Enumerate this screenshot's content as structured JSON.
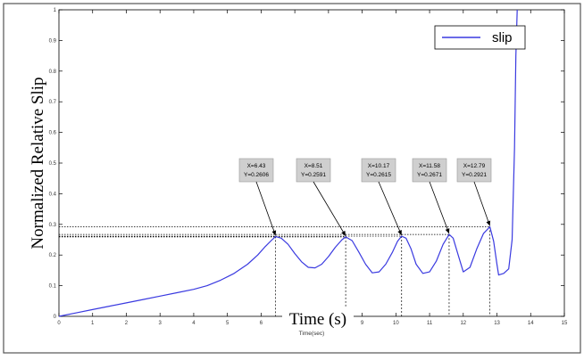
{
  "chart_data": {
    "type": "line",
    "xlabel_overlay": "Time (s)",
    "xlabel_matlab": "Time(sec)",
    "ylabel": "Normalized Relative Slip",
    "xlim": [
      0,
      15
    ],
    "ylim": [
      0,
      1
    ],
    "xticks": [
      "0",
      "1",
      "2",
      "3",
      "4",
      "5",
      "6",
      "7",
      "8",
      "9",
      "10",
      "11",
      "12",
      "13",
      "14",
      "15"
    ],
    "yticks": [
      "0",
      "0.1",
      "0.2",
      "0.3",
      "0.4",
      "0.5",
      "0.6",
      "0.7",
      "0.8",
      "0.9",
      "1"
    ],
    "grid": false,
    "legend": {
      "position": "top-right",
      "entries": [
        "slip"
      ]
    },
    "series": [
      {
        "name": "slip",
        "color": "#3a3ae0",
        "x": [
          0,
          0.5,
          1.0,
          1.5,
          2.0,
          2.5,
          3.0,
          3.5,
          4.0,
          4.4,
          4.8,
          5.2,
          5.6,
          5.9,
          6.1,
          6.3,
          6.43,
          6.6,
          6.8,
          7.0,
          7.2,
          7.4,
          7.6,
          7.8,
          8.0,
          8.2,
          8.4,
          8.51,
          8.7,
          8.9,
          9.1,
          9.3,
          9.5,
          9.7,
          9.9,
          10.05,
          10.17,
          10.3,
          10.45,
          10.6,
          10.8,
          11.0,
          11.2,
          11.4,
          11.58,
          11.7,
          11.85,
          12.0,
          12.2,
          12.4,
          12.6,
          12.79,
          12.9,
          13.0,
          13.05,
          13.2,
          13.35,
          13.45,
          13.52,
          13.56,
          13.6
        ],
        "y": [
          0,
          0.011,
          0.022,
          0.033,
          0.044,
          0.055,
          0.066,
          0.077,
          0.088,
          0.1,
          0.118,
          0.14,
          0.17,
          0.2,
          0.225,
          0.247,
          0.2606,
          0.255,
          0.235,
          0.205,
          0.178,
          0.16,
          0.158,
          0.17,
          0.195,
          0.225,
          0.25,
          0.2591,
          0.247,
          0.21,
          0.17,
          0.142,
          0.145,
          0.17,
          0.21,
          0.245,
          0.2615,
          0.255,
          0.22,
          0.17,
          0.14,
          0.145,
          0.18,
          0.235,
          0.2671,
          0.255,
          0.2,
          0.145,
          0.16,
          0.22,
          0.27,
          0.2921,
          0.245,
          0.17,
          0.135,
          0.14,
          0.155,
          0.25,
          0.55,
          0.85,
          1.0
        ]
      }
    ],
    "annotations": [
      {
        "x": 6.43,
        "y": 0.2606,
        "label_x": "X=6.43",
        "label_y": "Y=0.2606"
      },
      {
        "x": 8.51,
        "y": 0.2591,
        "label_x": "X=8.51",
        "label_y": "Y=0.2591"
      },
      {
        "x": 10.17,
        "y": 0.2615,
        "label_x": "X=10.17",
        "label_y": "Y=0.2615"
      },
      {
        "x": 11.58,
        "y": 0.2671,
        "label_x": "X=11.58",
        "label_y": "Y=0.2671"
      },
      {
        "x": 12.79,
        "y": 0.2921,
        "label_x": "X=12.79",
        "label_y": "Y=0.2921"
      }
    ]
  }
}
